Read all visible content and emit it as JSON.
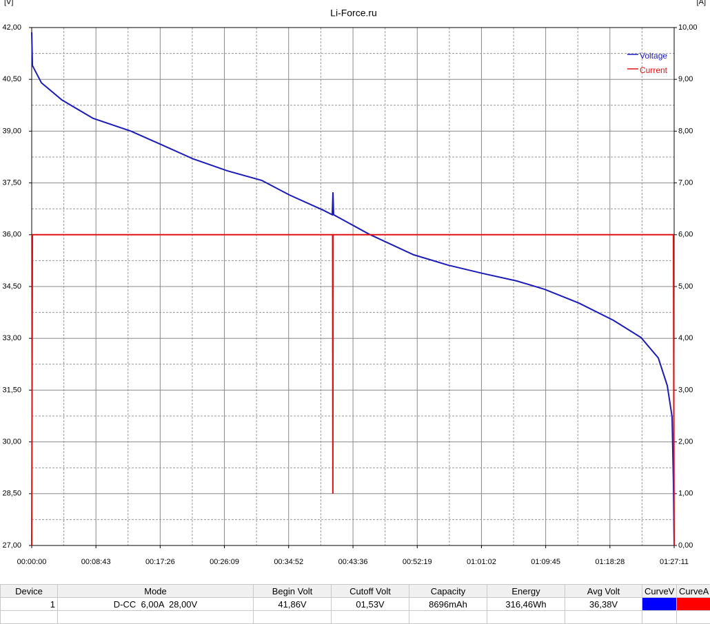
{
  "chart_data": {
    "type": "line",
    "title": "Li-Force.ru",
    "ylabel": "[V]",
    "y2label": "[A]",
    "xlim": [
      0,
      5231
    ],
    "xticks": [
      {
        "value": 0,
        "label": "00:00:00"
      },
      {
        "value": 523,
        "label": "00:08:43"
      },
      {
        "value": 1046,
        "label": "00:17:26"
      },
      {
        "value": 1569,
        "label": "00:26:09"
      },
      {
        "value": 2092,
        "label": "00:34:52"
      },
      {
        "value": 2616,
        "label": "00:43:36"
      },
      {
        "value": 3139,
        "label": "00:52:19"
      },
      {
        "value": 3662,
        "label": "01:01:02"
      },
      {
        "value": 4185,
        "label": "01:09:45"
      },
      {
        "value": 4708,
        "label": "01:18:28"
      },
      {
        "value": 5231,
        "label": "01:27:11"
      }
    ],
    "xminorticks": [
      261.5,
      784.5,
      1307.5,
      1830.5,
      2354,
      2877.5,
      3400.5,
      3923.5,
      4446.5,
      4969.5
    ],
    "ylim": [
      27,
      42
    ],
    "yticks": [
      {
        "value": 27,
        "label": "27,00"
      },
      {
        "value": 28.5,
        "label": "28,50"
      },
      {
        "value": 30,
        "label": "30,00"
      },
      {
        "value": 31.5,
        "label": "31,50"
      },
      {
        "value": 33,
        "label": "33,00"
      },
      {
        "value": 34.5,
        "label": "34,50"
      },
      {
        "value": 36,
        "label": "36,00"
      },
      {
        "value": 37.5,
        "label": "37,50"
      },
      {
        "value": 39,
        "label": "39,00"
      },
      {
        "value": 40.5,
        "label": "40,50"
      },
      {
        "value": 42,
        "label": "42,00"
      }
    ],
    "yminorticks": [
      27.75,
      29.25,
      30.75,
      32.25,
      33.75,
      35.25,
      36.75,
      38.25,
      39.75,
      41.25
    ],
    "y2lim": [
      0,
      10
    ],
    "y2ticks": [
      {
        "value": 0,
        "label": "0,00"
      },
      {
        "value": 1,
        "label": "1,00"
      },
      {
        "value": 2,
        "label": "2,00"
      },
      {
        "value": 3,
        "label": "3,00"
      },
      {
        "value": 4,
        "label": "4,00"
      },
      {
        "value": 5,
        "label": "5,00"
      },
      {
        "value": 6,
        "label": "6,00"
      },
      {
        "value": 7,
        "label": "7,00"
      },
      {
        "value": 8,
        "label": "8,00"
      },
      {
        "value": 9,
        "label": "9,00"
      },
      {
        "value": 10,
        "label": "10,00"
      }
    ],
    "grid": true,
    "legend": "upper right",
    "series": [
      {
        "name": "Voltage",
        "color": "#1a1ab8",
        "axis": "y",
        "x": [
          0,
          6,
          79,
          247,
          500,
          808,
          1061,
          1313,
          1594,
          1875,
          2099,
          2380,
          2447,
          2453,
          2458,
          2745,
          3109,
          3390,
          3671,
          3951,
          4176,
          4456,
          4737,
          4962,
          5102,
          5175,
          5214,
          5225,
          5231
        ],
        "values": [
          41.86,
          40.9,
          40.4,
          39.9,
          39.37,
          39.0,
          38.6,
          38.2,
          37.85,
          37.57,
          37.15,
          36.7,
          36.58,
          37.23,
          36.58,
          36.02,
          35.42,
          35.12,
          34.88,
          34.66,
          34.42,
          34.02,
          33.52,
          33.02,
          32.43,
          31.63,
          30.73,
          28.84,
          27.0
        ]
      },
      {
        "name": "Current",
        "color": "#e01010",
        "axis": "y2",
        "x": [
          0,
          6,
          2450,
          2452,
          2454,
          5225,
          5231
        ],
        "values": [
          0,
          6,
          6,
          1,
          6,
          6,
          0
        ]
      }
    ]
  },
  "table": {
    "columns": [
      "Device",
      "Mode",
      "Begin Volt",
      "Cutoff Volt",
      "Capacity",
      "Energy",
      "Avg Volt",
      "CurveV",
      "CurveA"
    ],
    "rows": [
      [
        "1",
        "D-CC  6,00A  28,00V",
        "41,86V",
        "01,53V",
        "8696mAh",
        "316,46Wh",
        "36,38V"
      ]
    ]
  }
}
